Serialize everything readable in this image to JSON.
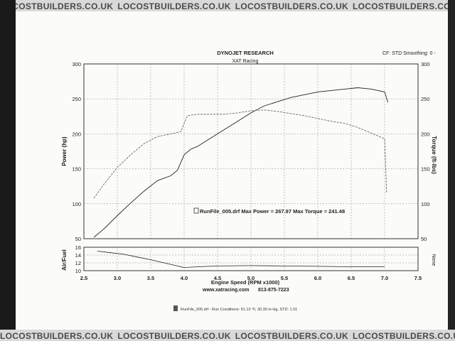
{
  "watermark": "LOCOSTBUILDERS.CO.UK",
  "header": {
    "title": "DYNOJET RESEARCH",
    "subtitle": "XAT Racing",
    "right": "CF: STD  Smoothing: 0  -"
  },
  "footer": {
    "axis_title": "Engine Speed (RPM x1000)",
    "website": "www.xatracing.com",
    "phone": "813-875-7223",
    "run_info": "RunFile_005.drf  -  Run Conditions: 91.13 °F, 30.30 in-Hg, STD: 1.01"
  },
  "annotation": "RunFile_005.drf Max Power = 267.97     Max Torque = 241.48",
  "chart_data": [
    {
      "type": "line",
      "title": "",
      "xlabel": "",
      "ylabel": "Power (hp)",
      "y2label": "Torque (ft-lbs)",
      "xlim": [
        2.5,
        7.5
      ],
      "ylim": [
        50,
        300
      ],
      "y2lim": [
        50,
        300
      ],
      "xticks": [
        2.5,
        3.0,
        3.5,
        4.0,
        4.5,
        5.0,
        5.5,
        6.0,
        6.5,
        7.0,
        7.5
      ],
      "xtick_labels": [
        "2.5",
        "3.0",
        "3.5",
        "4.0",
        "4.5",
        "5.0",
        "5.5",
        "6.0",
        "6.5",
        "7.0",
        "7.5"
      ],
      "yticks": [
        50,
        100,
        150,
        200,
        250,
        300
      ],
      "ytick_labels": [
        "50",
        "100",
        "150",
        "200",
        "250",
        "300"
      ],
      "y2ticks": [
        50,
        100,
        150,
        200,
        250,
        300
      ],
      "y2tick_labels": [
        "50",
        "100",
        "150",
        "200",
        "250",
        "300"
      ],
      "grid": true,
      "series": [
        {
          "name": "Power",
          "style": "solid",
          "x": [
            2.65,
            2.8,
            3.0,
            3.2,
            3.4,
            3.6,
            3.8,
            3.9,
            4.0,
            4.1,
            4.2,
            4.4,
            4.6,
            4.8,
            5.0,
            5.2,
            5.4,
            5.6,
            5.8,
            6.0,
            6.2,
            6.4,
            6.6,
            6.8,
            7.0,
            7.05
          ],
          "values": [
            52,
            64,
            83,
            101,
            118,
            133,
            140,
            148,
            170,
            178,
            182,
            194,
            206,
            218,
            230,
            240,
            246,
            252,
            256,
            260,
            262,
            264,
            266,
            264,
            260,
            245
          ]
        },
        {
          "name": "Torque",
          "style": "dashed",
          "x": [
            2.65,
            2.8,
            3.0,
            3.2,
            3.4,
            3.6,
            3.8,
            3.95,
            4.0,
            4.05,
            4.2,
            4.4,
            4.6,
            4.8,
            5.0,
            5.2,
            5.4,
            5.6,
            5.8,
            6.0,
            6.2,
            6.4,
            6.6,
            6.8,
            7.0,
            7.03
          ],
          "values": [
            108,
            128,
            152,
            170,
            186,
            196,
            200,
            203,
            215,
            226,
            228,
            228,
            228,
            230,
            233,
            234,
            232,
            229,
            226,
            222,
            218,
            215,
            209,
            201,
            193,
            115
          ]
        }
      ]
    },
    {
      "type": "line",
      "ylabel": "Air/Fuel",
      "y2label": "None",
      "xlim": [
        2.5,
        7.5
      ],
      "ylim": [
        10,
        16
      ],
      "yticks": [
        10,
        12,
        14,
        16
      ],
      "ytick_labels": [
        "10",
        "12",
        "14",
        "16"
      ],
      "grid": true,
      "series": [
        {
          "name": "Air/Fuel",
          "style": "solid",
          "x": [
            2.7,
            2.9,
            3.1,
            3.3,
            3.5,
            3.7,
            3.9,
            4.0,
            4.2,
            4.5,
            5.0,
            5.5,
            6.0,
            6.5,
            7.0
          ],
          "values": [
            15.0,
            14.6,
            14.2,
            13.5,
            12.8,
            12.0,
            11.2,
            10.8,
            11.0,
            11.2,
            11.3,
            11.2,
            11.1,
            11.0,
            11.0
          ]
        }
      ]
    }
  ]
}
